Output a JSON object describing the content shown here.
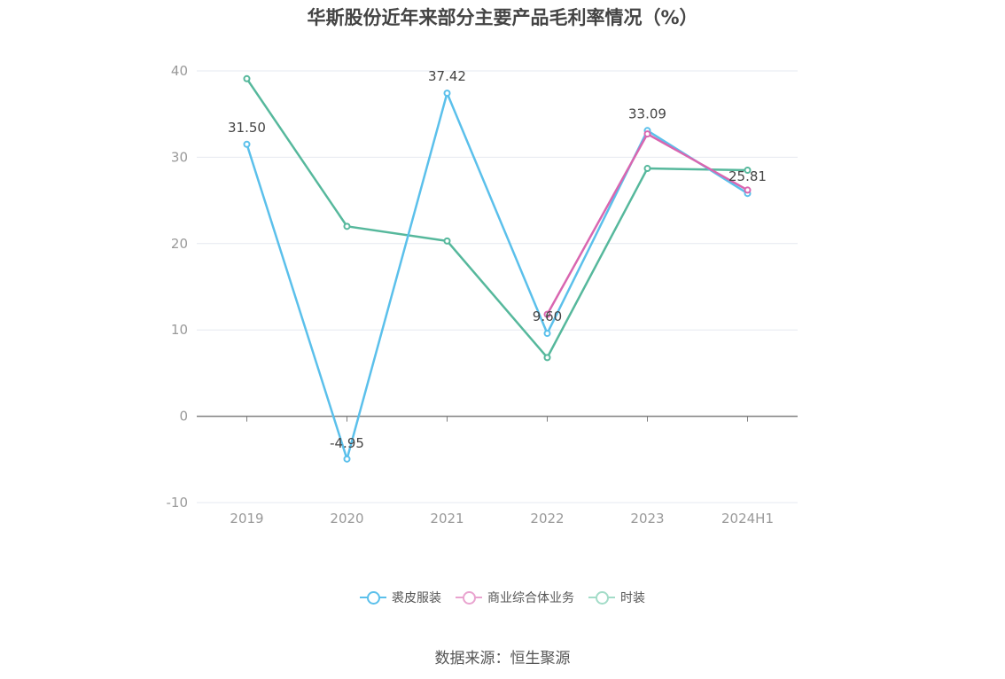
{
  "title": "华斯股份近年来部分主要产品毛利率情况（%）",
  "source": "数据来源：恒生聚源",
  "legend": [
    {
      "name": "裘皮服装",
      "color": "#5bc0eb"
    },
    {
      "name": "商业综合体业务",
      "color": "#e377c2"
    },
    {
      "name": "时装",
      "color": "#5cbf9f"
    }
  ],
  "chart_data": {
    "type": "line",
    "title": "华斯股份近年来部分主要产品毛利率情况（%）",
    "categories": [
      "2019",
      "2020",
      "2021",
      "2022",
      "2023",
      "2024H1"
    ],
    "ylim": [
      -10,
      40
    ],
    "yticks": [
      -10,
      0,
      10,
      20,
      30,
      40
    ],
    "grid": true,
    "legend_position": "bottom",
    "series": [
      {
        "name": "裘皮服装",
        "color": "#5bc0eb",
        "values": [
          31.5,
          -4.95,
          37.42,
          9.6,
          33.09,
          25.81
        ],
        "labels": [
          "31.50",
          "-4.95",
          "37.42",
          "9.60",
          "33.09",
          "25.81"
        ]
      },
      {
        "name": "商业综合体业务",
        "color": "#d966b0",
        "values": [
          null,
          null,
          null,
          11.8,
          32.7,
          26.2
        ]
      },
      {
        "name": "时装",
        "color": "#56b89c",
        "values": [
          39.1,
          22.0,
          20.3,
          6.8,
          28.7,
          28.5
        ]
      }
    ]
  }
}
